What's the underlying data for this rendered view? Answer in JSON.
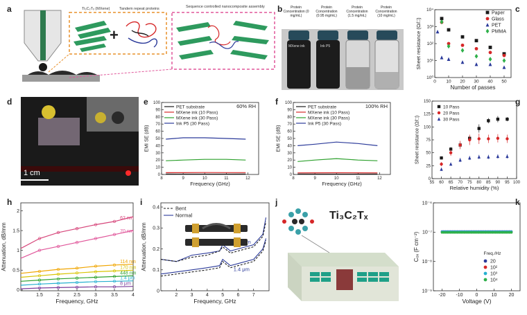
{
  "panel_labels": {
    "a": "a",
    "b": "b",
    "c": "c",
    "d": "d",
    "e": "e",
    "f": "f",
    "g": "g",
    "h": "h",
    "i": "i",
    "j": "j",
    "k": "k"
  },
  "colors": {
    "black": "#1a1a1a",
    "red": "#d62728",
    "green": "#2ca02c",
    "blue": "#2b3a9a",
    "pink": "#d6457a",
    "orange": "#f0a500",
    "cyan": "#26b0d0",
    "purple": "#7a3a9a",
    "dash_orange": "#e8902a",
    "dash_pink": "#e0569a",
    "diamond_green": "#2fb04a",
    "mxene_green": "#2e9a5e",
    "board_green": "#1fa088"
  },
  "panel_a": {
    "mxene_label": "Ti₃C₂Tₓ (MXene)",
    "protein_label": "Tandem repeat proteins",
    "nanocomposite_label": "Sequence controlled nanocomposite assembly"
  },
  "panel_b": {
    "vials": [
      {
        "caption": "Protein Concentration (0 mg/mL)",
        "label": "MXene ink"
      },
      {
        "caption": "Protein Concentration (0.95 mg/mL)",
        "label": "Ink P5"
      },
      {
        "caption": "Protein Concentration (1.5 mg/mL)",
        "label": ""
      },
      {
        "caption": "Protein Concentration (10 mg/mL)",
        "label": ""
      }
    ]
  },
  "panel_d": {
    "scalebar": "1 cm"
  },
  "panel_j": {
    "formula": "Ti₃C₂Tₓ"
  },
  "chart_data": [
    {
      "id": "c",
      "type": "scatter",
      "title": "",
      "xlabel": "Number of passes",
      "ylabel": "Sheet resistance (Ω/□)",
      "ylog": true,
      "xlim": [
        0,
        55
      ],
      "ylim": [
        1,
        10000
      ],
      "xticks": [
        0,
        10,
        20,
        30,
        40,
        50
      ],
      "yticks": [
        {
          "v": 1,
          "label": "10⁰"
        },
        {
          "v": 10,
          "label": "10¹"
        },
        {
          "v": 100,
          "label": "10²"
        },
        {
          "v": 1000,
          "label": "10³"
        },
        {
          "v": 10000,
          "label": "10⁴"
        }
      ],
      "legend_position": "top-right",
      "series": [
        {
          "name": "Paper",
          "color": "#1a1a1a",
          "marker": "square",
          "x": [
            5,
            10,
            20,
            30,
            40,
            50
          ],
          "y": [
            3000,
            650,
            250,
            150,
            60,
            25
          ]
        },
        {
          "name": "Glass",
          "color": "#d62728",
          "marker": "circle",
          "x": [
            5,
            10,
            20,
            30,
            40,
            50
          ],
          "y": [
            1800,
            100,
            80,
            50,
            30,
            20
          ]
        },
        {
          "name": "PET",
          "color": "#2b3a9a",
          "marker": "triangle",
          "x": [
            2,
            5,
            10,
            20,
            30,
            40,
            50
          ],
          "y": [
            500,
            15,
            12,
            8,
            6,
            6,
            4
          ]
        },
        {
          "name": "PMMA",
          "color": "#2fb04a",
          "marker": "diamond",
          "x": [
            5,
            10,
            20,
            30,
            40,
            50
          ],
          "y": [
            1900,
            70,
            40,
            18,
            12,
            10
          ]
        }
      ]
    },
    {
      "id": "e",
      "type": "line",
      "title": "",
      "annotation": "60% RH",
      "xlabel": "Frequency (GHz)",
      "ylabel": "EMI SE (dB)",
      "xlim": [
        8,
        12.5
      ],
      "ylim": [
        0,
        100
      ],
      "xticks": [
        8,
        9,
        10,
        11,
        12
      ],
      "yticks": [
        0,
        10,
        20,
        30,
        40,
        50,
        60,
        70,
        80,
        90,
        100
      ],
      "legend_position": "top-left",
      "series": [
        {
          "name": "PET substrate",
          "color": "#1a1a1a",
          "x": [
            8.2,
            9,
            10,
            11,
            11.9
          ],
          "y": [
            0.6,
            0.5,
            0.5,
            0.5,
            0.6
          ]
        },
        {
          "name": "MXene ink (10 Pass)",
          "color": "#d62728",
          "x": [
            8.2,
            9,
            10,
            11,
            11.9
          ],
          "y": [
            2.5,
            2.5,
            2.7,
            2.6,
            2.6
          ]
        },
        {
          "name": "MXene ink (30 Pass)",
          "color": "#2ca02c",
          "x": [
            8.2,
            9,
            10,
            11,
            11.9
          ],
          "y": [
            19,
            20,
            21,
            21,
            20
          ]
        },
        {
          "name": "Ink P5 (30 Pass)",
          "color": "#2b3a9a",
          "x": [
            8.2,
            9,
            10,
            11,
            11.9
          ],
          "y": [
            49,
            51,
            51,
            50,
            49
          ]
        }
      ]
    },
    {
      "id": "f",
      "type": "line",
      "title": "",
      "annotation": "100% RH",
      "xlabel": "Frequency (GHz)",
      "ylabel": "EMI SE (dB)",
      "xlim": [
        8,
        12.5
      ],
      "ylim": [
        0,
        100
      ],
      "xticks": [
        8,
        9,
        10,
        11,
        12
      ],
      "yticks": [
        0,
        10,
        20,
        30,
        40,
        50,
        60,
        70,
        80,
        90,
        100
      ],
      "legend_position": "top-left",
      "series": [
        {
          "name": "PET substrate",
          "color": "#1a1a1a",
          "x": [
            8.2,
            9,
            10,
            11,
            11.9
          ],
          "y": [
            0.6,
            0.5,
            0.5,
            0.5,
            0.6
          ]
        },
        {
          "name": "MXene ink (10 Pass)",
          "color": "#d62728",
          "x": [
            8.2,
            9,
            10,
            11,
            11.9
          ],
          "y": [
            2.2,
            2.3,
            2.4,
            2.3,
            2.2
          ]
        },
        {
          "name": "MXene ink (30 Pass)",
          "color": "#2ca02c",
          "x": [
            8.2,
            9,
            10,
            11,
            11.9
          ],
          "y": [
            18,
            20,
            22,
            20,
            19
          ]
        },
        {
          "name": "Ink P5 (30 Pass)",
          "color": "#2b3a9a",
          "x": [
            8.2,
            9,
            10,
            11,
            11.9
          ],
          "y": [
            40,
            42,
            45,
            43,
            40
          ]
        }
      ]
    },
    {
      "id": "g",
      "type": "scatter",
      "title": "",
      "xlabel": "Relative humidity (%)",
      "ylabel": "Sheet resistance (Ω/□)",
      "xlim": [
        55,
        100
      ],
      "ylim": [
        0,
        150
      ],
      "xticks": [
        55,
        60,
        65,
        70,
        75,
        80,
        85,
        90,
        95,
        100
      ],
      "yticks": [
        0,
        25,
        50,
        75,
        100,
        125,
        150
      ],
      "legend_position": "top-left",
      "series": [
        {
          "name": "10 Pass",
          "color": "#1a1a1a",
          "marker": "square",
          "x": [
            60,
            65,
            70,
            75,
            80,
            85,
            90,
            95
          ],
          "y": [
            40,
            57,
            65,
            78,
            97,
            112,
            115,
            115
          ],
          "err": [
            3,
            4,
            5,
            5,
            8,
            5,
            6,
            4
          ]
        },
        {
          "name": "20 Pass",
          "color": "#d62728",
          "marker": "circle",
          "x": [
            60,
            65,
            70,
            75,
            80,
            85,
            90,
            95
          ],
          "y": [
            28,
            50,
            65,
            75,
            77,
            77,
            78,
            77
          ],
          "err": [
            4,
            6,
            8,
            10,
            10,
            8,
            8,
            8
          ]
        },
        {
          "name": "30 Pass",
          "color": "#2b3a9a",
          "marker": "triangle",
          "x": [
            60,
            65,
            70,
            75,
            80,
            85,
            90,
            95
          ],
          "y": [
            18,
            28,
            36,
            40,
            42,
            42,
            43,
            43
          ],
          "err": [
            3,
            3,
            4,
            4,
            4,
            4,
            4,
            4
          ]
        }
      ]
    },
    {
      "id": "h",
      "type": "line",
      "title": "",
      "xlabel": "Frequency, GHz",
      "ylabel": "Attenuation, dB/mm",
      "xlim": [
        1.0,
        4.0
      ],
      "ylim": [
        -0.02,
        2.2
      ],
      "xticks": [
        1.5,
        2.0,
        2.5,
        3.0,
        3.5,
        4.0
      ],
      "yticks": [
        0.0,
        0.5,
        1.0,
        1.5,
        2.0
      ],
      "legend_position": "right",
      "series": [
        {
          "name": "62 nm",
          "color": "#d6457a",
          "x": [
            1.0,
            1.5,
            2.0,
            2.5,
            3.0,
            3.5,
            4.0
          ],
          "y": [
            1.05,
            1.3,
            1.45,
            1.55,
            1.65,
            1.73,
            1.85
          ]
        },
        {
          "name": "70 nm",
          "color": "#e0569a",
          "x": [
            1.0,
            1.5,
            2.0,
            2.5,
            3.0,
            3.5,
            4.0
          ],
          "y": [
            0.8,
            1.0,
            1.1,
            1.2,
            1.3,
            1.4,
            1.5
          ]
        },
        {
          "name": "114 nm",
          "color": "#f0a500",
          "x": [
            1.0,
            1.5,
            2.0,
            2.5,
            3.0,
            3.5,
            4.0
          ],
          "y": [
            0.42,
            0.47,
            0.52,
            0.55,
            0.6,
            0.63,
            0.65
          ]
        },
        {
          "name": "170 nm",
          "color": "#d7c300",
          "x": [
            1.0,
            1.5,
            2.0,
            2.5,
            3.0,
            3.5,
            4.0
          ],
          "y": [
            0.32,
            0.36,
            0.4,
            0.43,
            0.46,
            0.48,
            0.5
          ]
        },
        {
          "name": "448 nm",
          "color": "#2ca02c",
          "x": [
            1.0,
            1.5,
            2.0,
            2.5,
            3.0,
            3.5,
            4.0
          ],
          "y": [
            0.22,
            0.25,
            0.28,
            0.3,
            0.32,
            0.34,
            0.36
          ]
        },
        {
          "name": "1.4 μm",
          "color": "#26b0d0",
          "x": [
            1.0,
            1.5,
            2.0,
            2.5,
            3.0,
            3.5,
            4.0
          ],
          "y": [
            0.12,
            0.15,
            0.17,
            0.19,
            0.21,
            0.22,
            0.23
          ]
        },
        {
          "name": "8 μm",
          "color": "#7a3a9a",
          "x": [
            1.0,
            1.5,
            2.0,
            2.5,
            3.0,
            3.5,
            4.0
          ],
          "y": [
            0.03,
            0.05,
            0.06,
            0.07,
            0.08,
            0.08,
            0.09
          ]
        }
      ]
    },
    {
      "id": "i",
      "type": "line",
      "title": "",
      "xlabel": "Frequency, GHz",
      "ylabel": "Attenuation, dB/mm",
      "xlim": [
        1,
        8
      ],
      "ylim": [
        0,
        0.42
      ],
      "xticks": [
        2,
        3,
        4,
        5,
        6,
        7
      ],
      "yticks": [
        0.0,
        0.1,
        0.2,
        0.3,
        0.4
      ],
      "legend_position": "top-left",
      "legend": [
        "Bent",
        "Normal"
      ],
      "labels": [
        "548 nm",
        "1.4 μm"
      ],
      "series": [
        {
          "name": "548 nm",
          "style": "solid",
          "color": "#2b3a9a",
          "x": [
            1,
            2,
            3,
            4,
            4.8,
            5,
            5.5,
            6,
            7,
            7.6,
            7.8
          ],
          "y": [
            0.15,
            0.14,
            0.17,
            0.18,
            0.19,
            0.22,
            0.19,
            0.2,
            0.22,
            0.27,
            0.35
          ]
        },
        {
          "name": "548 nm",
          "style": "dashed",
          "color": "#1a1a1a",
          "x": [
            1,
            2,
            3,
            4,
            4.8,
            5,
            5.5,
            6,
            7,
            7.6,
            7.8
          ],
          "y": [
            0.15,
            0.14,
            0.16,
            0.17,
            0.19,
            0.21,
            0.18,
            0.19,
            0.21,
            0.26,
            0.33
          ]
        },
        {
          "name": "1.4 μm",
          "style": "solid",
          "color": "#2b3a9a",
          "x": [
            1,
            2,
            3,
            4,
            4.8,
            5,
            5.5,
            6,
            7,
            7.6,
            7.8
          ],
          "y": [
            0.08,
            0.09,
            0.1,
            0.11,
            0.12,
            0.15,
            0.12,
            0.13,
            0.15,
            0.2,
            0.25
          ]
        },
        {
          "name": "1.4 μm",
          "style": "dashed",
          "color": "#1a1a1a",
          "x": [
            1,
            2,
            3,
            4,
            4.8,
            5,
            5.5,
            6,
            7,
            7.6,
            7.8
          ],
          "y": [
            0.07,
            0.08,
            0.09,
            0.1,
            0.11,
            0.14,
            0.11,
            0.12,
            0.14,
            0.19,
            0.24
          ]
        }
      ]
    },
    {
      "id": "k",
      "type": "scatter",
      "title": "",
      "xlabel": "Voltage (V)",
      "ylabel": "Cₒₓ (F cm⁻²)",
      "ylog": true,
      "xlim": [
        -25,
        25
      ],
      "ylim": [
        1e-09,
        1e-06
      ],
      "xticks": [
        -20,
        -10,
        0,
        10,
        20
      ],
      "yticks": [
        {
          "v": 1e-09,
          "label": "10⁻⁹"
        },
        {
          "v": 1e-08,
          "label": "10⁻⁸"
        },
        {
          "v": 1e-07,
          "label": "10⁻⁷"
        },
        {
          "v": 1e-06,
          "label": "10⁻⁶"
        }
      ],
      "legend_title": "Freq./Hz",
      "legend_position": "bottom-right",
      "series": [
        {
          "name": "20",
          "color": "#2b3a9a",
          "marker": "circle",
          "y_const": 1.05e-07
        },
        {
          "name": "10²",
          "color": "#d62728",
          "marker": "circle",
          "y_const": 1e-07
        },
        {
          "name": "10³",
          "color": "#26b0d0",
          "marker": "circle",
          "y_const": 1.03e-07
        },
        {
          "name": "10⁴",
          "color": "#2fb04a",
          "marker": "circle",
          "y_const": 9.8e-08
        }
      ]
    }
  ]
}
